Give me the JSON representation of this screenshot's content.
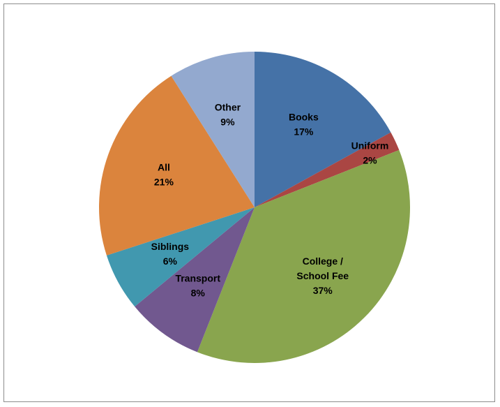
{
  "chart_data": {
    "type": "pie",
    "title": "",
    "start_angle_deg": 0,
    "direction": "clockwise",
    "slices": [
      {
        "label_lines": [
          "Books"
        ],
        "value": 17,
        "value_label": "17%",
        "color": "#4572A7"
      },
      {
        "label_lines": [
          "Uniform"
        ],
        "value": 2,
        "value_label": "2%",
        "color": "#AA4643"
      },
      {
        "label_lines": [
          "College /",
          "School Fee"
        ],
        "value": 37,
        "value_label": "37%",
        "color": "#89A54E"
      },
      {
        "label_lines": [
          "Transport"
        ],
        "value": 8,
        "value_label": "8%",
        "color": "#71588F"
      },
      {
        "label_lines": [
          "Siblings"
        ],
        "value": 6,
        "value_label": "6%",
        "color": "#4198AF"
      },
      {
        "label_lines": [
          "All"
        ],
        "value": 21,
        "value_label": "21%",
        "color": "#DB843D"
      },
      {
        "label_lines": [
          "Other"
        ],
        "value": 9,
        "value_label": "9%",
        "color": "#93A9CF"
      }
    ]
  }
}
